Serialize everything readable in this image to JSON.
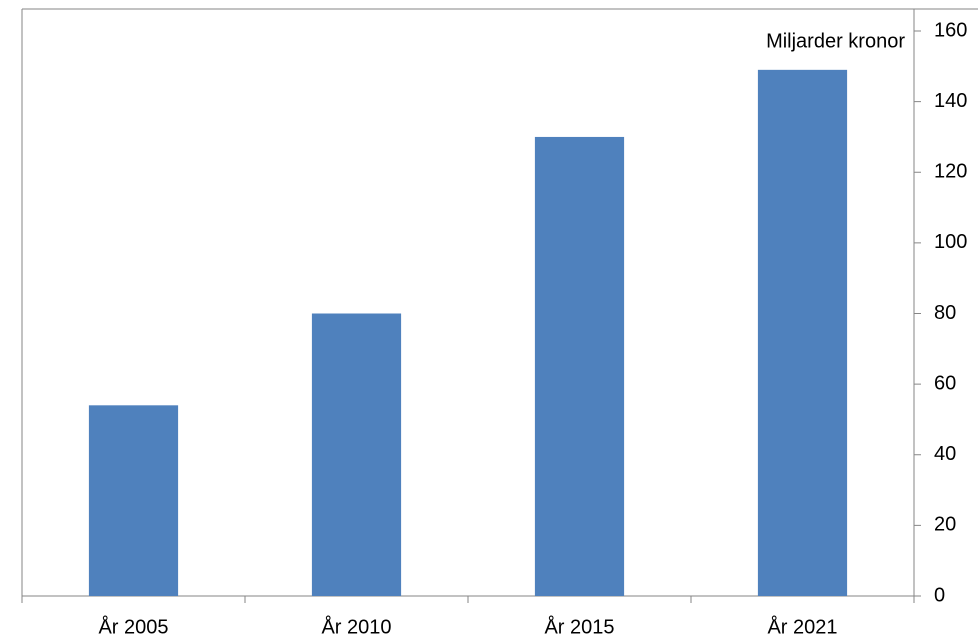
{
  "chart_data": {
    "type": "bar",
    "y_label": "Miljarder kronor",
    "categories": [
      "År 2005",
      "År 2010",
      "År 2015",
      "År 2021"
    ],
    "values": [
      54,
      80,
      130,
      149
    ],
    "color": "#4f81bd",
    "ylim": [
      0,
      160
    ],
    "yticks": [
      0,
      20,
      40,
      60,
      80,
      100,
      120,
      140,
      160
    ],
    "grid": false,
    "y_axis_side": "right"
  }
}
